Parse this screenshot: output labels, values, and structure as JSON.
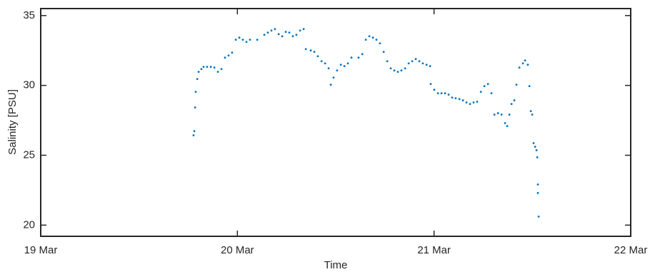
{
  "chart_data": {
    "type": "scatter",
    "xlabel": "Time",
    "ylabel": "Salinity [PSU]",
    "color": "#0072bd",
    "xlim": [
      19,
      22
    ],
    "xticks": [
      {
        "value": 19,
        "label": "19 Mar"
      },
      {
        "value": 20,
        "label": "20 Mar"
      },
      {
        "value": 21,
        "label": "21 Mar"
      },
      {
        "value": 22,
        "label": "22 Mar"
      }
    ],
    "ylim": [
      19.2,
      35.5
    ],
    "yticks": [
      20,
      25,
      30,
      35
    ],
    "x": [
      19.777,
      19.781,
      19.785,
      19.788,
      19.796,
      19.803,
      19.817,
      19.828,
      19.846,
      19.865,
      19.883,
      19.901,
      19.919,
      19.937,
      19.955,
      19.973,
      19.992,
      20.01,
      20.028,
      20.046,
      20.064,
      20.101,
      20.137,
      20.155,
      20.173,
      20.191,
      20.21,
      20.228,
      20.246,
      20.264,
      20.282,
      20.3,
      20.319,
      20.337,
      20.348,
      20.373,
      20.391,
      20.409,
      20.428,
      20.446,
      20.464,
      20.475,
      20.489,
      20.507,
      20.526,
      20.544,
      20.562,
      20.58,
      20.616,
      20.635,
      20.653,
      20.671,
      20.689,
      20.707,
      20.725,
      20.744,
      20.762,
      20.78,
      20.798,
      20.816,
      20.834,
      20.853,
      20.871,
      20.889,
      20.907,
      20.925,
      20.943,
      20.962,
      20.98,
      20.983,
      21.001,
      21.02,
      21.038,
      21.056,
      21.074,
      21.092,
      21.11,
      21.129,
      21.147,
      21.165,
      21.183,
      21.201,
      21.219,
      21.238,
      21.256,
      21.274,
      21.292,
      21.307,
      21.325,
      21.343,
      21.361,
      21.372,
      21.383,
      21.394,
      21.408,
      21.419,
      21.434,
      21.452,
      21.463,
      21.477,
      21.485,
      21.492,
      21.499,
      21.506,
      21.514,
      21.521,
      21.525,
      21.528,
      21.528,
      21.532
    ],
    "values": [
      26.43,
      26.73,
      28.42,
      29.54,
      30.46,
      30.97,
      31.17,
      31.33,
      31.33,
      31.33,
      31.28,
      30.97,
      31.17,
      31.99,
      32.14,
      32.35,
      33.27,
      33.42,
      33.27,
      33.11,
      33.27,
      33.27,
      33.62,
      33.78,
      33.93,
      34.03,
      33.67,
      33.52,
      33.83,
      33.78,
      33.52,
      33.62,
      33.93,
      34.03,
      32.6,
      32.5,
      32.4,
      32.09,
      31.73,
      31.58,
      31.22,
      30.05,
      30.56,
      31.07,
      31.48,
      31.38,
      31.58,
      31.99,
      31.99,
      32.24,
      33.27,
      33.52,
      33.42,
      33.27,
      33.01,
      32.4,
      31.73,
      31.22,
      31.07,
      30.97,
      31.07,
      31.22,
      31.58,
      31.73,
      31.89,
      31.73,
      31.58,
      31.48,
      31.38,
      30.1,
      29.69,
      29.44,
      29.44,
      29.44,
      29.34,
      29.13,
      29.08,
      29.03,
      28.93,
      28.78,
      28.67,
      28.78,
      28.83,
      29.54,
      29.95,
      30.1,
      29.44,
      27.91,
      28.01,
      27.91,
      27.3,
      27.09,
      27.91,
      28.67,
      28.93,
      30.05,
      31.28,
      31.58,
      31.79,
      31.48,
      29.95,
      28.16,
      27.91,
      25.87,
      25.61,
      25.36,
      24.85,
      22.91,
      22.3,
      20.61
    ]
  }
}
